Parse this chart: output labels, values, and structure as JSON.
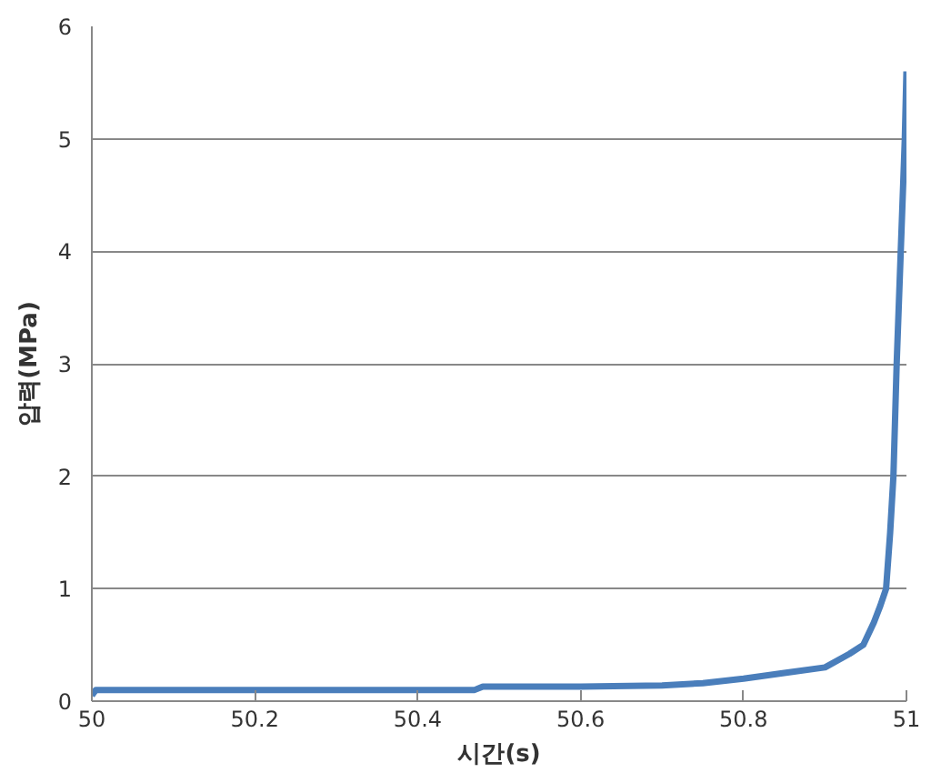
{
  "chart_data": {
    "type": "line",
    "xlabel": "시간(s)",
    "ylabel": "압력(MPa)",
    "xlim": [
      50,
      51
    ],
    "xticks": [
      50,
      50.2,
      50.4,
      50.6,
      50.8,
      51
    ],
    "ylim": [
      0,
      6
    ],
    "yticks": [
      0,
      1,
      2,
      3,
      4,
      5,
      6
    ],
    "grid": "y",
    "marker": "none",
    "line_style": "solid",
    "series": [
      {
        "color": "#4a7ebb",
        "x": [
          50,
          50.005,
          50.1,
          50.3,
          50.47,
          50.48,
          50.6,
          50.7,
          50.75,
          50.8,
          50.85,
          50.9,
          50.93,
          50.947,
          50.96,
          50.968,
          50.975,
          50.98,
          50.984,
          50.988,
          50.993,
          50.998,
          51.0
        ],
        "values": [
          0.05,
          0.1,
          0.1,
          0.1,
          0.1,
          0.13,
          0.13,
          0.14,
          0.16,
          0.2,
          0.25,
          0.3,
          0.42,
          0.5,
          0.7,
          0.85,
          1.0,
          1.5,
          2,
          3,
          4,
          5,
          5.6
        ]
      }
    ]
  }
}
